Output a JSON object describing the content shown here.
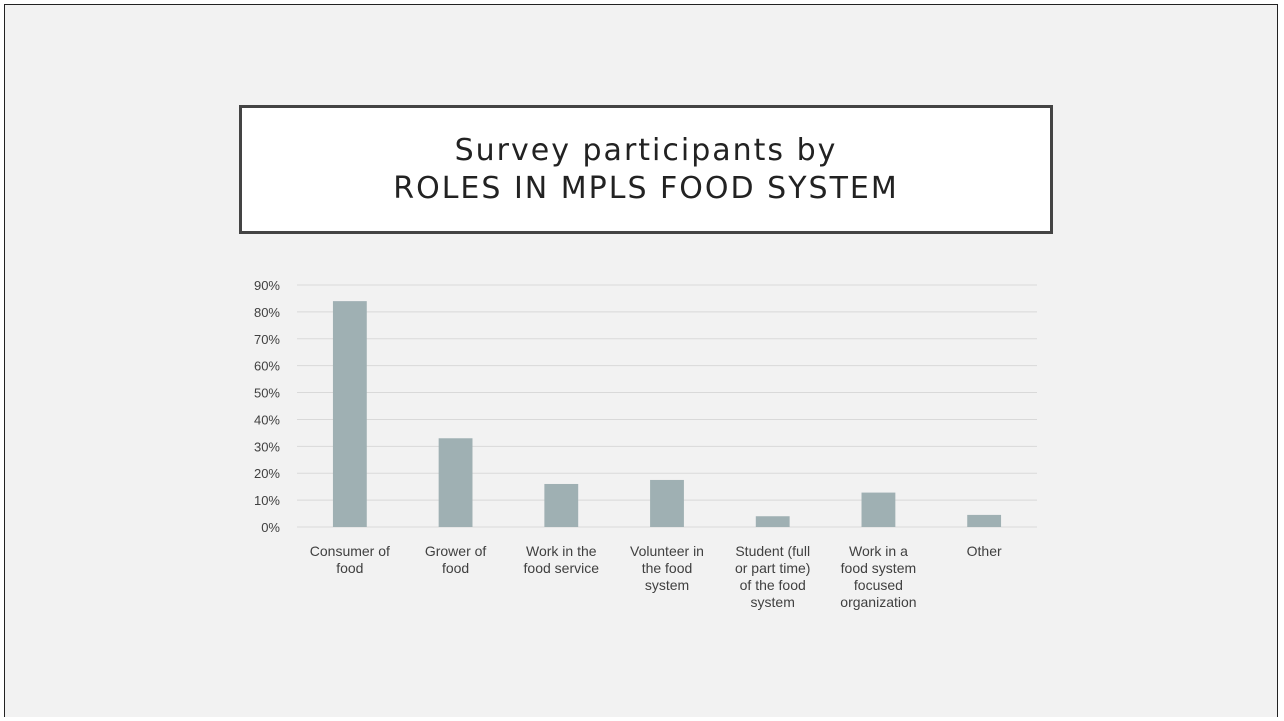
{
  "slide": {
    "title_line1": "Survey participants by",
    "title_line2": "ROLES IN MPLS FOOD SYSTEM"
  },
  "colors": {
    "bar": "#9fb0b3",
    "grid": "#d9d9d9",
    "background": "#f2f2f2"
  },
  "chart_data": {
    "type": "bar",
    "title": "Survey participants by ROLES IN MPLS FOOD SYSTEM",
    "categories": [
      [
        "Consumer of",
        "food"
      ],
      [
        "Grower of",
        "food"
      ],
      [
        "Work in the",
        "food service"
      ],
      [
        "Volunteer in",
        "the food",
        "system"
      ],
      [
        "Student (full",
        "or part time)",
        "of the food",
        "system"
      ],
      [
        "Work in a",
        "food system",
        "focused",
        "organization"
      ],
      [
        "Other"
      ]
    ],
    "values": [
      84,
      33,
      16,
      17.5,
      4,
      12.8,
      4.5
    ],
    "y_unit": "%",
    "ylim": [
      0,
      90
    ],
    "yticks": [
      0,
      10,
      20,
      30,
      40,
      50,
      60,
      70,
      80,
      90
    ],
    "ytick_labels": [
      "0%",
      "10%",
      "20%",
      "30%",
      "40%",
      "50%",
      "60%",
      "70%",
      "80%",
      "90%"
    ],
    "xlabel": "",
    "ylabel": "",
    "grid": true,
    "legend": false
  }
}
